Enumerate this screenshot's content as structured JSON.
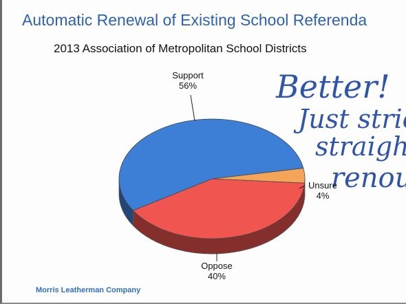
{
  "slide": {
    "title": "Automatic Renewal of Existing School Referenda",
    "subtitle": "2013 Association of Metropolitan School Districts",
    "footer": "Morris Leatherman Company"
  },
  "handwriting": {
    "line1": "Better!",
    "line2": "Just stric",
    "line3": "straigh",
    "line4": "renou"
  },
  "chart_data": {
    "type": "pie",
    "title": "Automatic Renewal of Existing School Referenda",
    "subtitle": "2013 Association of Metropolitan School Districts",
    "slices": [
      {
        "label": "Support",
        "value": 56,
        "display": "56%",
        "color": "#3d7fd6"
      },
      {
        "label": "Oppose",
        "value": 40,
        "display": "40%",
        "color": "#f0554f"
      },
      {
        "label": "Unsure",
        "value": 4,
        "display": "4%",
        "color": "#f4a55a"
      }
    ]
  }
}
